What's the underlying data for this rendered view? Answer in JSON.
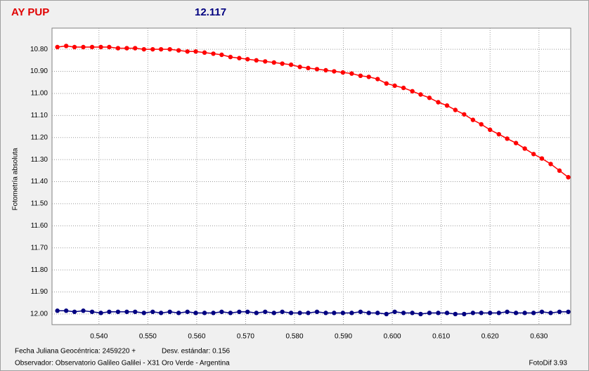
{
  "chart_data": {
    "type": "line",
    "title": "AY PUP",
    "subtitle": "12.117",
    "y_label": "Fotometría absoluta",
    "annotations": [
      "Fecha Juliana Geocéntrica: 2459220 +",
      "Desv. estándar: 0.156",
      "Observador: Observatorio Galileo Galilei - X31 Oro Verde - Argentina",
      "FotoDif 3.93"
    ],
    "y_inverted": true,
    "grid": true,
    "xlim": [
      0.5304,
      0.6365
    ],
    "ylim": [
      10.704,
      12.048
    ],
    "xticks": [
      {
        "value": 0.54,
        "label": "0.540"
      },
      {
        "value": 0.55,
        "label": "0.550"
      },
      {
        "value": 0.56,
        "label": "0.560"
      },
      {
        "value": 0.57,
        "label": "0.570"
      },
      {
        "value": 0.58,
        "label": "0.580"
      },
      {
        "value": 0.59,
        "label": "0.590"
      },
      {
        "value": 0.6,
        "label": "0.600"
      },
      {
        "value": 0.61,
        "label": "0.610"
      },
      {
        "value": 0.62,
        "label": "0.620"
      },
      {
        "value": 0.63,
        "label": "0.630"
      }
    ],
    "yticks": [
      {
        "value": 10.8,
        "label": "10.80"
      },
      {
        "value": 10.9,
        "label": "10.90"
      },
      {
        "value": 11.0,
        "label": "11.00"
      },
      {
        "value": 11.1,
        "label": "11.10"
      },
      {
        "value": 11.2,
        "label": "11.20"
      },
      {
        "value": 11.3,
        "label": "11.30"
      },
      {
        "value": 11.4,
        "label": "11.40"
      },
      {
        "value": 11.5,
        "label": "11.50"
      },
      {
        "value": 11.6,
        "label": "11.60"
      },
      {
        "value": 11.7,
        "label": "11.70"
      },
      {
        "value": 11.8,
        "label": "11.80"
      },
      {
        "value": 11.9,
        "label": "11.90"
      },
      {
        "value": 12.0,
        "label": "12.00"
      }
    ],
    "x": [
      0.5315,
      0.5333,
      0.535,
      0.5368,
      0.5386,
      0.5404,
      0.5421,
      0.5439,
      0.5457,
      0.5474,
      0.5492,
      0.551,
      0.5527,
      0.5545,
      0.5563,
      0.5581,
      0.5598,
      0.5616,
      0.5634,
      0.5651,
      0.5669,
      0.5687,
      0.5704,
      0.5722,
      0.574,
      0.5758,
      0.5775,
      0.5793,
      0.5811,
      0.5828,
      0.5846,
      0.5864,
      0.5881,
      0.5899,
      0.5917,
      0.5935,
      0.5952,
      0.597,
      0.5988,
      0.6005,
      0.6023,
      0.6041,
      0.6058,
      0.6076,
      0.6094,
      0.6112,
      0.6129,
      0.6147,
      0.6165,
      0.6182,
      0.62,
      0.6218,
      0.6235,
      0.6253,
      0.6271,
      0.6289,
      0.6306,
      0.6324,
      0.6342,
      0.636
    ],
    "series": [
      {
        "color": "#ff0000",
        "values": [
          10.79,
          10.785,
          10.79,
          10.79,
          10.79,
          10.79,
          10.79,
          10.795,
          10.795,
          10.795,
          10.8,
          10.8,
          10.8,
          10.8,
          10.805,
          10.81,
          10.81,
          10.815,
          10.82,
          10.825,
          10.835,
          10.84,
          10.845,
          10.85,
          10.855,
          10.86,
          10.865,
          10.87,
          10.88,
          10.885,
          10.89,
          10.895,
          10.9,
          10.905,
          10.91,
          10.92,
          10.925,
          10.935,
          10.955,
          10.965,
          10.975,
          10.99,
          11.005,
          11.02,
          11.04,
          11.055,
          11.075,
          11.095,
          11.12,
          11.14,
          11.165,
          11.185,
          11.205,
          11.225,
          11.25,
          11.275,
          11.295,
          11.32,
          11.35,
          11.38
        ]
      },
      {
        "color": "#000080",
        "values": [
          11.985,
          11.985,
          11.99,
          11.985,
          11.99,
          11.995,
          11.99,
          11.99,
          11.99,
          11.99,
          11.995,
          11.99,
          11.995,
          11.99,
          11.995,
          11.99,
          11.995,
          11.995,
          11.995,
          11.99,
          11.995,
          11.99,
          11.99,
          11.995,
          11.99,
          11.995,
          11.99,
          11.995,
          11.995,
          11.995,
          11.99,
          11.995,
          11.995,
          11.995,
          11.995,
          11.99,
          11.995,
          11.995,
          12.0,
          11.99,
          11.995,
          11.995,
          12.0,
          11.995,
          11.995,
          11.995,
          12.0,
          12.0,
          11.995,
          11.995,
          11.995,
          11.995,
          11.99,
          11.995,
          11.995,
          11.995,
          11.99,
          11.995,
          11.99,
          11.99
        ]
      }
    ]
  }
}
